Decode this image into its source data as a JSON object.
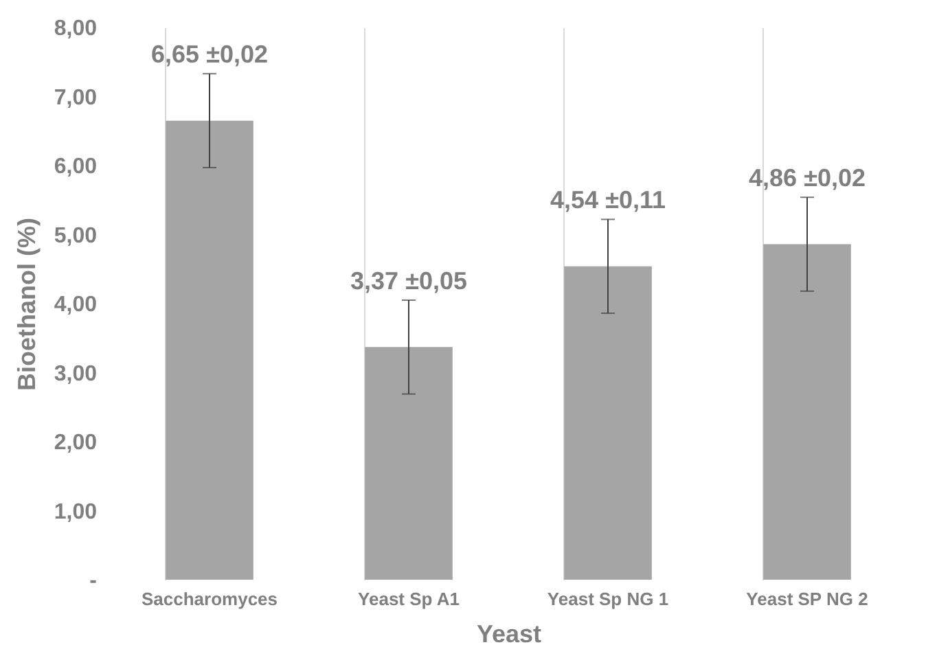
{
  "chart_data": {
    "type": "bar",
    "xlabel": "Yeast",
    "ylabel": "Bioethanol (%)",
    "categories": [
      "Saccharomyces",
      "Yeast Sp A1",
      "Yeast Sp NG 1",
      "Yeast SP NG 2"
    ],
    "series": [
      {
        "color": "#a5a5a5",
        "values": [
          6.65,
          3.37,
          4.54,
          4.86
        ],
        "errors": [
          0.68,
          0.68,
          0.68,
          0.68
        ],
        "value_labels": [
          "6,65 ±0,02",
          "3,37 ±0,05",
          "4,54 ±0,11",
          "4,86 ±0,02"
        ]
      }
    ],
    "ylim": [
      0,
      8
    ],
    "yticks": [
      {
        "value": 0,
        "label": "-"
      },
      {
        "value": 1,
        "label": "1,00"
      },
      {
        "value": 2,
        "label": "2,00"
      },
      {
        "value": 3,
        "label": "3,00"
      },
      {
        "value": 4,
        "label": "4,00"
      },
      {
        "value": 5,
        "label": "5,00"
      },
      {
        "value": 6,
        "label": "6,00"
      },
      {
        "value": 7,
        "label": "7,00"
      },
      {
        "value": 8,
        "label": "8,00"
      }
    ],
    "grid": "x"
  }
}
